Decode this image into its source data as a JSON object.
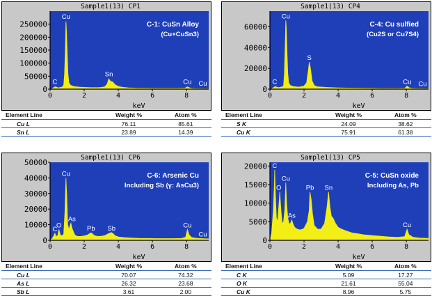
{
  "chart_data": [
    {
      "type": "line",
      "title": "Sample1(13) CP1",
      "xlabel": "keV",
      "xlim": [
        0,
        9.3
      ],
      "ylim": [
        0,
        300000
      ],
      "x_ticks": [
        0,
        2,
        4,
        6,
        8
      ],
      "y_ticks": [
        0,
        50000,
        100000,
        150000,
        200000,
        250000
      ],
      "annotation_lines": [
        "C-1: CuSn Alloy",
        "(Cu+CuSn3)"
      ],
      "series": [
        {
          "x": [
            0.0,
            0.1,
            0.2,
            0.3,
            0.4,
            0.5,
            0.55,
            0.6,
            0.7,
            0.8,
            0.85,
            0.9,
            0.93,
            0.95,
            1.0,
            1.05,
            1.1,
            1.2,
            1.4,
            1.7,
            2.0,
            2.4,
            2.8,
            3.0,
            3.2,
            3.35,
            3.44,
            3.55,
            3.66,
            3.8,
            3.95,
            4.1,
            4.3,
            4.6,
            5.0,
            5.5,
            6.0,
            6.5,
            7.0,
            7.5,
            7.9,
            8.05,
            8.15,
            8.3,
            8.5,
            8.9,
            9.3
          ],
          "y": [
            0,
            1000,
            6000,
            9000,
            7000,
            5000,
            6000,
            7000,
            8000,
            15000,
            60000,
            170000,
            260000,
            240000,
            150000,
            60000,
            25000,
            15000,
            10000,
            8000,
            7000,
            6000,
            6000,
            7000,
            9000,
            20000,
            40000,
            30000,
            28000,
            18000,
            12000,
            9000,
            7000,
            5000,
            4000,
            3500,
            3000,
            3000,
            3000,
            3000,
            3500,
            9000,
            6000,
            3000,
            2500,
            2000,
            1500
          ]
        }
      ],
      "peaks": [
        {
          "label": "C",
          "x": 0.28,
          "y": 12000
        },
        {
          "label": "Cu",
          "x": 0.93,
          "y": 262000
        },
        {
          "label": "Sn",
          "x": 3.45,
          "y": 42000
        },
        {
          "label": "Cu",
          "x": 8.05,
          "y": 12000
        },
        {
          "label": "Cu",
          "x": 8.95,
          "y": 5000
        }
      ]
    },
    {
      "type": "line",
      "title": "Sample1(13) CP4",
      "xlabel": "keV",
      "xlim": [
        0,
        9.3
      ],
      "ylim": [
        0,
        75000
      ],
      "x_ticks": [
        0,
        2,
        4,
        6,
        8
      ],
      "y_ticks": [
        0,
        20000,
        40000,
        60000
      ],
      "annotation_lines": [
        "C-4: Cu sulfied",
        "(Cu2S or Cu7S4)"
      ],
      "series": [
        {
          "x": [
            0.0,
            0.1,
            0.2,
            0.3,
            0.4,
            0.5,
            0.6,
            0.7,
            0.8,
            0.85,
            0.9,
            0.93,
            0.96,
            1.0,
            1.05,
            1.1,
            1.2,
            1.4,
            1.7,
            2.0,
            2.15,
            2.25,
            2.31,
            2.38,
            2.47,
            2.6,
            2.8,
            3.2,
            3.6,
            4.0,
            4.5,
            5.0,
            5.5,
            6.0,
            6.5,
            7.0,
            7.5,
            7.9,
            8.05,
            8.15,
            8.3,
            8.6,
            9.0,
            9.3
          ],
          "y": [
            0,
            300,
            1500,
            2500,
            2000,
            1500,
            1800,
            2200,
            3000,
            15000,
            45000,
            66000,
            60000,
            38000,
            15000,
            6000,
            3500,
            2500,
            2000,
            3000,
            6000,
            18000,
            26000,
            20000,
            8000,
            3500,
            2200,
            1800,
            1500,
            1300,
            1100,
            1000,
            900,
            800,
            700,
            700,
            700,
            800,
            3000,
            1500,
            800,
            600,
            500,
            400
          ]
        }
      ],
      "peaks": [
        {
          "label": "C",
          "x": 0.28,
          "y": 3000
        },
        {
          "label": "Cu",
          "x": 0.93,
          "y": 66000
        },
        {
          "label": "S",
          "x": 2.31,
          "y": 26000
        },
        {
          "label": "Cu",
          "x": 8.05,
          "y": 3000
        },
        {
          "label": "Cu",
          "x": 8.95,
          "y": 1000
        }
      ]
    },
    {
      "type": "line",
      "title": "Sample1(13) CP6",
      "xlabel": "keV",
      "xlim": [
        0,
        9.3
      ],
      "ylim": [
        0,
        50000
      ],
      "x_ticks": [
        0,
        2,
        4,
        6,
        8
      ],
      "y_ticks": [
        0,
        10000,
        20000,
        30000,
        40000,
        50000
      ],
      "annotation_lines": [
        "C-6: Arsenic Cu",
        "Including Sb (γ: AsCu3)"
      ],
      "series": [
        {
          "x": [
            0.0,
            0.1,
            0.2,
            0.28,
            0.35,
            0.45,
            0.52,
            0.6,
            0.7,
            0.8,
            0.87,
            0.93,
            0.98,
            1.03,
            1.1,
            1.17,
            1.22,
            1.28,
            1.35,
            1.45,
            1.6,
            1.8,
            2.0,
            2.2,
            2.4,
            2.5,
            2.6,
            2.8,
            3.0,
            3.2,
            3.4,
            3.6,
            3.7,
            3.8,
            4.0,
            4.3,
            4.7,
            5.2,
            5.7,
            6.2,
            6.7,
            7.2,
            7.7,
            7.95,
            8.05,
            8.15,
            8.3,
            8.6,
            8.9,
            9.3
          ],
          "y": [
            0,
            800,
            2500,
            4500,
            2500,
            3000,
            7000,
            3500,
            2800,
            4000,
            18000,
            40000,
            28000,
            10000,
            7000,
            9500,
            11000,
            8000,
            6000,
            3500,
            2500,
            2500,
            2800,
            3500,
            4800,
            4000,
            3000,
            2500,
            2600,
            3000,
            4200,
            5000,
            4200,
            3000,
            2200,
            1800,
            1500,
            1300,
            1200,
            1100,
            1100,
            1100,
            1200,
            2000,
            7000,
            3500,
            1800,
            1300,
            1100,
            900
          ]
        }
      ],
      "peaks": [
        {
          "label": "C",
          "x": 0.28,
          "y": 4500
        },
        {
          "label": "O",
          "x": 0.52,
          "y": 7000
        },
        {
          "label": "Cu",
          "x": 0.93,
          "y": 40000
        },
        {
          "label": "As",
          "x": 1.28,
          "y": 11000
        },
        {
          "label": "Pb",
          "x": 2.4,
          "y": 5000
        },
        {
          "label": "Sb",
          "x": 3.6,
          "y": 5000
        },
        {
          "label": "Cu",
          "x": 8.05,
          "y": 7000
        },
        {
          "label": "Cu",
          "x": 8.95,
          "y": 1200
        }
      ]
    },
    {
      "type": "line",
      "title": "Sample1(13) CP5",
      "xlabel": "keV",
      "xlim": [
        0,
        9.3
      ],
      "ylim": [
        0,
        21000
      ],
      "x_ticks": [
        0,
        2,
        4,
        6,
        8
      ],
      "y_ticks": [
        0,
        5000,
        10000,
        15000,
        20000
      ],
      "annotation_lines": [
        "C-5: CuSn oxide",
        "Including As, Pb"
      ],
      "series": [
        {
          "x": [
            0.0,
            0.1,
            0.2,
            0.26,
            0.28,
            0.31,
            0.38,
            0.45,
            0.52,
            0.58,
            0.65,
            0.72,
            0.8,
            0.87,
            0.93,
            0.98,
            1.05,
            1.12,
            1.2,
            1.28,
            1.35,
            1.45,
            1.6,
            1.8,
            2.0,
            2.2,
            2.3,
            2.35,
            2.42,
            2.5,
            2.6,
            2.8,
            3.0,
            3.2,
            3.35,
            3.44,
            3.52,
            3.6,
            3.7,
            3.85,
            4.0,
            4.2,
            4.5,
            4.8,
            5.1,
            5.5,
            6.0,
            6.5,
            7.0,
            7.5,
            7.9,
            8.04,
            8.15,
            8.4,
            8.8,
            9.3
          ],
          "y": [
            0,
            2000,
            8000,
            15000,
            19000,
            14000,
            6000,
            5000,
            9000,
            13000,
            8000,
            4500,
            5000,
            8000,
            15500,
            10000,
            6000,
            4500,
            4500,
            5500,
            4500,
            3500,
            3000,
            2800,
            3200,
            5000,
            8000,
            13000,
            11000,
            7000,
            4000,
            3000,
            3000,
            4500,
            9000,
            13000,
            9000,
            6500,
            6000,
            4500,
            3500,
            3000,
            2500,
            2000,
            1800,
            1500,
            1300,
            1100,
            900,
            800,
            1000,
            3000,
            1500,
            800,
            600,
            500
          ]
        }
      ],
      "peaks": [
        {
          "label": "C",
          "x": 0.28,
          "y": 19000
        },
        {
          "label": "O",
          "x": 0.52,
          "y": 13000
        },
        {
          "label": "Cu",
          "x": 0.93,
          "y": 15500
        },
        {
          "label": "As",
          "x": 1.28,
          "y": 5500
        },
        {
          "label": "Pb",
          "x": 2.35,
          "y": 13000
        },
        {
          "label": "Sn",
          "x": 3.44,
          "y": 13000
        },
        {
          "label": "Cu",
          "x": 8.04,
          "y": 3000
        }
      ]
    }
  ],
  "tables": [
    {
      "headers": [
        "Element Line",
        "Weight %",
        "Atom %"
      ],
      "rows": [
        [
          "Cu L",
          "76.11",
          "85.61"
        ],
        [
          "Sn L",
          "23.89",
          "14.39"
        ]
      ]
    },
    {
      "headers": [
        "Element Line",
        "Weight %",
        "Atom %"
      ],
      "rows": [
        [
          "S K",
          "24.09",
          "38.62"
        ],
        [
          "Cu K",
          "75.91",
          "61.38"
        ]
      ]
    },
    {
      "headers": [
        "Element Line",
        "Weight %",
        "Atom %"
      ],
      "rows": [
        [
          "Cu L",
          "70.07",
          "74.32"
        ],
        [
          "As L",
          "26.32",
          "23.68"
        ],
        [
          "Sb L",
          "3.61",
          "2.00"
        ]
      ]
    },
    {
      "headers": [
        "Element Line",
        "Weight %",
        "Atom %"
      ],
      "rows": [
        [
          "C K",
          "5.09",
          "17.27"
        ],
        [
          "O K",
          "21.61",
          "55.04"
        ],
        [
          "Cu K",
          "8.96",
          "5.75"
        ]
      ]
    }
  ],
  "colors": {
    "plot_background": "#1f3fb8",
    "frame_background": "#c8c8c8",
    "spectrum": "#f2ee16",
    "axis": "#000000",
    "peak_label": "#ffffff",
    "table_rule": "#2f63b3"
  }
}
